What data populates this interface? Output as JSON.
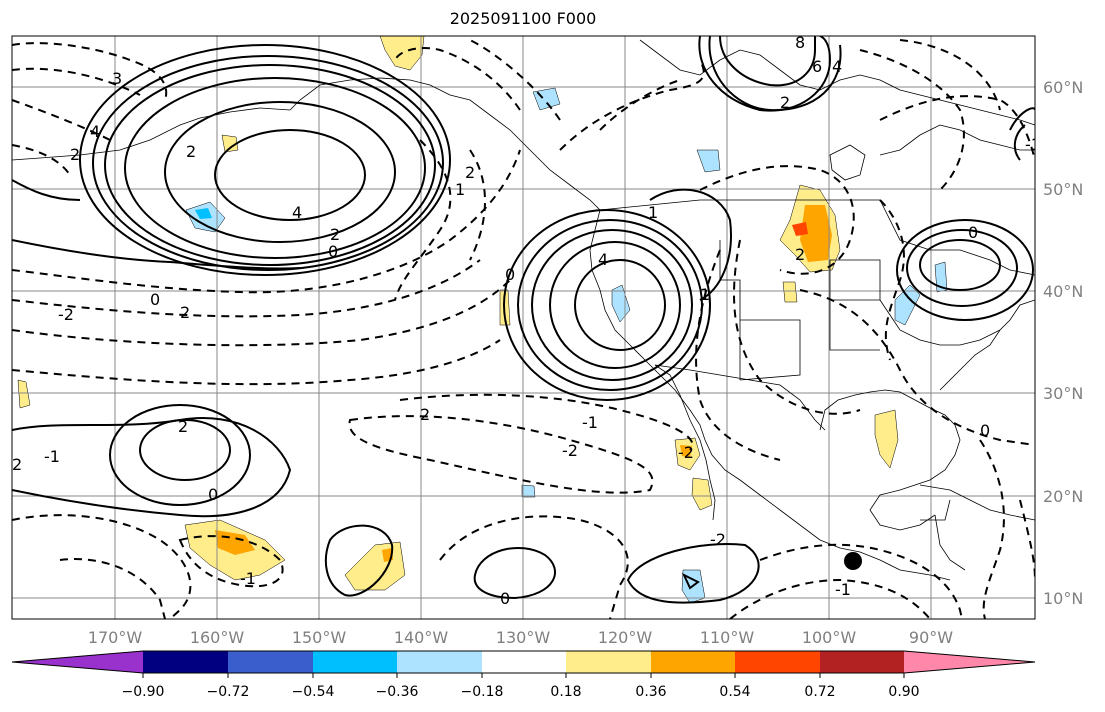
{
  "title": "2025091100 F000",
  "latitude_labels": [
    "60°N",
    "50°N",
    "40°N",
    "30°N",
    "20°N",
    "10°N"
  ],
  "longitude_labels": [
    "170°W",
    "160°W",
    "150°W",
    "140°W",
    "130°W",
    "120°W",
    "110°W",
    "100°W",
    "90°W"
  ],
  "colorbar": {
    "ticks": [
      "−0.90",
      "−0.72",
      "−0.54",
      "−0.36",
      "−0.18",
      "0.18",
      "0.36",
      "0.54",
      "0.72",
      "0.90"
    ],
    "colors": [
      "#9932CC",
      "#000080",
      "#3A5FCD",
      "#00BFFF",
      "#AEE3FF",
      "#FFFFFF",
      "#FFEC8B",
      "#FFA500",
      "#FF4500",
      "#B22222",
      "#FF88AA"
    ]
  },
  "contour_labels": [
    "3",
    "4",
    "2",
    "2",
    "4",
    "2",
    "0",
    "0",
    "2",
    "-2",
    "2",
    "-1",
    "2",
    "0",
    "-1",
    "4",
    "2",
    "1",
    "2",
    "-1",
    "-2",
    "-2",
    "1",
    "1",
    "2",
    "0",
    "0",
    "-2",
    "-1",
    "2",
    "8",
    "6",
    "4",
    "0",
    "0",
    "-1"
  ],
  "marker": {
    "type": "storm-center",
    "color": "#000000"
  }
}
